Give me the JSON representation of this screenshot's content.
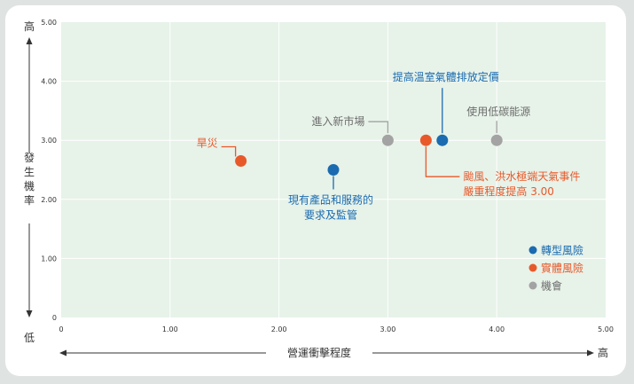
{
  "colors": {
    "risk_transition": "#1a6bb0",
    "risk_physical": "#e8592a",
    "opportunity": "#a3a3a3",
    "plot_bg": "#e7f2e9",
    "text_dark": "#333333",
    "text_blue": "#1a6bb0",
    "text_orange": "#e8592a",
    "text_gray": "#6d6d6d"
  },
  "chart_data": {
    "type": "scatter",
    "title": "",
    "xlabel": "營運衝擊程度",
    "ylabel": "發生機率",
    "x_low_label": "低",
    "x_high_label": "高",
    "y_high_label": "高",
    "xlim": [
      0,
      5
    ],
    "ylim": [
      0,
      5
    ],
    "x_ticks": [
      "0",
      "1.00",
      "2.00",
      "3.00",
      "4.00",
      "5.00"
    ],
    "y_ticks": [
      "0",
      "1.00",
      "2.00",
      "3.00",
      "4.00",
      "5.00"
    ],
    "grid": true,
    "legend_position": "bottom-right",
    "legend": [
      {
        "label": "轉型風險",
        "category": "transition"
      },
      {
        "label": "實體風險",
        "category": "physical"
      },
      {
        "label": "機會",
        "category": "opportunity"
      }
    ],
    "points": [
      {
        "label": [
          "旱災"
        ],
        "x": 1.65,
        "y": 2.65,
        "category": "physical"
      },
      {
        "label": [
          "現有產品和服務的",
          "要求及監管"
        ],
        "x": 2.5,
        "y": 2.5,
        "category": "transition"
      },
      {
        "label": [
          "進入新市場"
        ],
        "x": 3.0,
        "y": 3.0,
        "category": "opportunity"
      },
      {
        "label": [
          "颱風、洪水極端天氣事件",
          "嚴重程度提高 3.00"
        ],
        "x": 3.35,
        "y": 3.0,
        "category": "physical"
      },
      {
        "label": [
          "提高溫室氣體排放定價"
        ],
        "x": 3.5,
        "y": 3.0,
        "category": "transition"
      },
      {
        "label": [
          "使用低碳能源"
        ],
        "x": 4.0,
        "y": 3.0,
        "category": "opportunity"
      }
    ]
  }
}
